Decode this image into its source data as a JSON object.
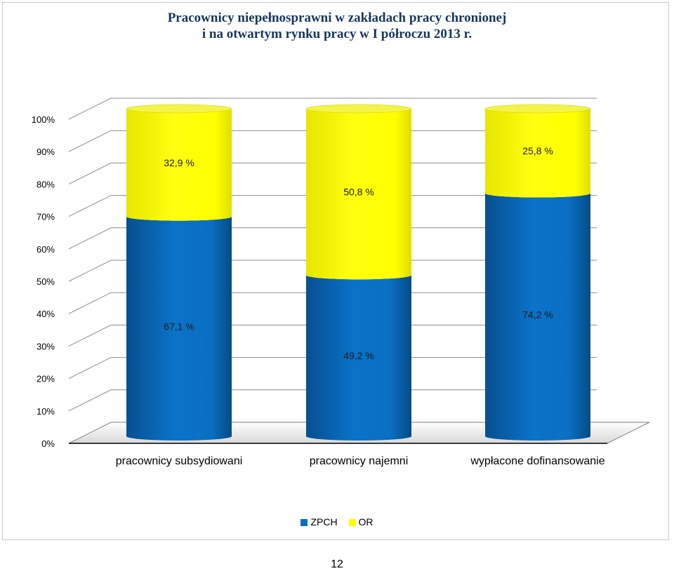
{
  "chart_data": {
    "type": "bar",
    "stacked": true,
    "three_d": true,
    "title_lines": [
      "Pracownicy niepełnosprawni w zakładach pracy chronionej",
      "i na otwartym rynku pracy w I półroczu 2013 r."
    ],
    "categories": [
      "pracownicy subsydiowani",
      "pracownicy najemni",
      "wypłacone dofinansowanie"
    ],
    "series": [
      {
        "name": "ZPCH",
        "values": [
          67.1,
          49.2,
          74.2
        ],
        "labels": [
          "67,1 %",
          "49,2 %",
          "74,2 %"
        ],
        "color": "#0a6fc2"
      },
      {
        "name": "OR",
        "values": [
          32.9,
          50.8,
          25.8
        ],
        "labels": [
          "32,9 %",
          "50,8 %",
          "25,8 %"
        ],
        "color": "#ffff00"
      }
    ],
    "yticks": [
      "0%",
      "10%",
      "20%",
      "30%",
      "40%",
      "50%",
      "60%",
      "70%",
      "80%",
      "90%",
      "100%"
    ],
    "ylim": [
      0,
      100
    ],
    "grid": true,
    "legend_position": "bottom"
  },
  "page_number": "12"
}
